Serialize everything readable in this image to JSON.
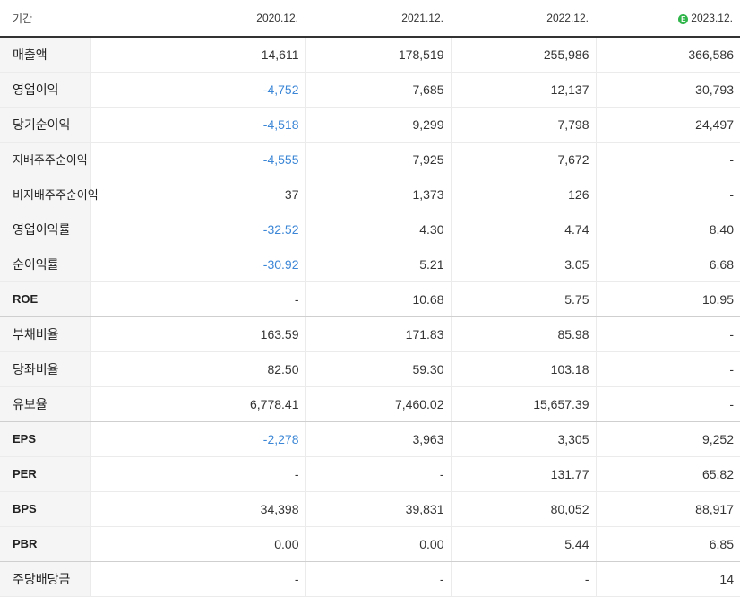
{
  "header": {
    "label": "기간",
    "periods": [
      "2020.12.",
      "2021.12.",
      "2022.12.",
      "2023.12."
    ],
    "estimate_badge": "E",
    "estimate_color": "#2fb54a"
  },
  "negative_color": "#3b86d6",
  "rows": [
    {
      "label": "매출액",
      "values": [
        "14,611",
        "178,519",
        "255,986",
        "366,586"
      ]
    },
    {
      "label": "영업이익",
      "values": [
        "-4,752",
        "7,685",
        "12,137",
        "30,793"
      ]
    },
    {
      "label": "당기순이익",
      "values": [
        "-4,518",
        "9,299",
        "7,798",
        "24,497"
      ]
    },
    {
      "label": "지배주주순이익",
      "values": [
        "-4,555",
        "7,925",
        "7,672",
        "-"
      ]
    },
    {
      "label": "비지배주주순이익",
      "values": [
        "37",
        "1,373",
        "126",
        "-"
      ]
    },
    {
      "label": "영업이익률",
      "values": [
        "-32.52",
        "4.30",
        "4.74",
        "8.40"
      ]
    },
    {
      "label": "순이익률",
      "values": [
        "-30.92",
        "5.21",
        "3.05",
        "6.68"
      ]
    },
    {
      "label": "ROE",
      "values": [
        "-",
        "10.68",
        "5.75",
        "10.95"
      ]
    },
    {
      "label": "부채비율",
      "values": [
        "163.59",
        "171.83",
        "85.98",
        "-"
      ]
    },
    {
      "label": "당좌비율",
      "values": [
        "82.50",
        "59.30",
        "103.18",
        "-"
      ]
    },
    {
      "label": "유보율",
      "values": [
        "6,778.41",
        "7,460.02",
        "15,657.39",
        "-"
      ]
    },
    {
      "label": "EPS",
      "values": [
        "-2,278",
        "3,963",
        "3,305",
        "9,252"
      ]
    },
    {
      "label": "PER",
      "values": [
        "-",
        "-",
        "131.77",
        "65.82"
      ]
    },
    {
      "label": "BPS",
      "values": [
        "34,398",
        "39,831",
        "80,052",
        "88,917"
      ]
    },
    {
      "label": "PBR",
      "values": [
        "0.00",
        "0.00",
        "5.44",
        "6.85"
      ]
    },
    {
      "label": "주당배당금",
      "values": [
        "-",
        "-",
        "-",
        "14"
      ]
    }
  ]
}
